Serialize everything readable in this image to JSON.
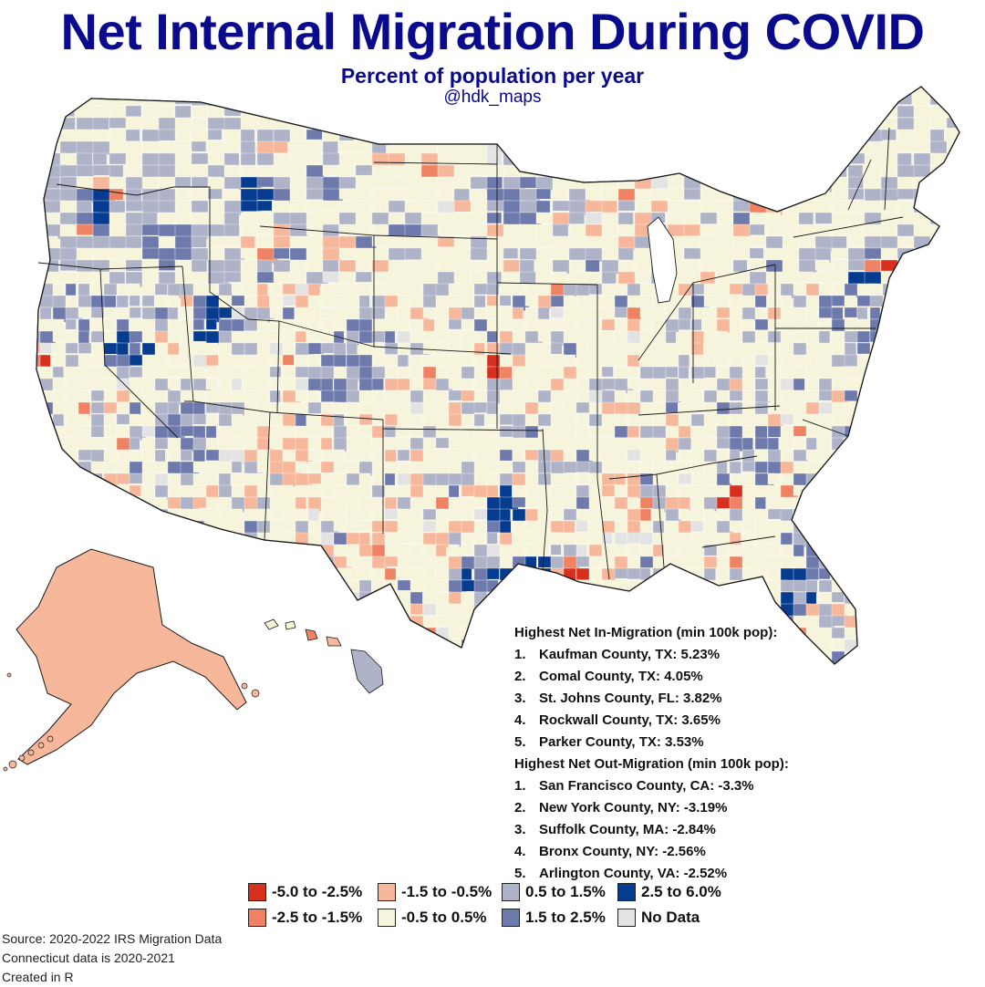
{
  "header": {
    "title": "Net Internal Migration During COVID",
    "subtitle": "Percent of population per year",
    "handle": "@hdk_maps"
  },
  "map": {
    "region": "United States counties",
    "colors": {
      "c1": "#d7301f",
      "c2": "#ee8262",
      "c3": "#f7b79a",
      "c4": "#f6f5dc",
      "c5": "#aeb3c8",
      "c6": "#6d7aab",
      "c7": "#063c8f",
      "nodata": "#e3e3e3",
      "border": "#1a1a1a"
    }
  },
  "in_migration": {
    "heading": "Highest Net In-Migration (min 100k pop):",
    "items": [
      {
        "rank": "1.",
        "text": "Kaufman County, TX: 5.23%"
      },
      {
        "rank": "2.",
        "text": "Comal County, TX: 4.05%"
      },
      {
        "rank": "3.",
        "text": "St. Johns County, FL: 3.82%"
      },
      {
        "rank": "4.",
        "text": "Rockwall County, TX: 3.65%"
      },
      {
        "rank": "5.",
        "text": "Parker County, TX: 3.53%"
      }
    ]
  },
  "out_migration": {
    "heading": "Highest Net Out-Migration (min 100k pop):",
    "items": [
      {
        "rank": "1.",
        "text": "San Francisco County, CA: -3.3%"
      },
      {
        "rank": "2.",
        "text": "New York County, NY: -3.19%"
      },
      {
        "rank": "3.",
        "text": "Suffolk County, MA: -2.84%"
      },
      {
        "rank": "4.",
        "text": "Bronx County, NY: -2.56%"
      },
      {
        "rank": "5.",
        "text": "Arlington County, VA: -2.52%"
      }
    ]
  },
  "legend": {
    "items": [
      {
        "label": "-5.0 to -2.5%",
        "color": "#d7301f"
      },
      {
        "label": "-2.5 to -1.5%",
        "color": "#ee8262"
      },
      {
        "label": "-1.5 to -0.5%",
        "color": "#f7b79a"
      },
      {
        "label": "-0.5 to 0.5%",
        "color": "#f6f5dc"
      },
      {
        "label": "0.5 to 1.5%",
        "color": "#aeb3c8"
      },
      {
        "label": "1.5 to 2.5%",
        "color": "#6d7aab"
      },
      {
        "label": "2.5 to 6.0%",
        "color": "#063c8f"
      },
      {
        "label": "No Data",
        "color": "#e3e3e3"
      }
    ]
  },
  "footer": {
    "source": "Source: 2020-2022 IRS Migration Data",
    "note": "Connecticut data is 2020-2021",
    "created": "Created in R"
  }
}
